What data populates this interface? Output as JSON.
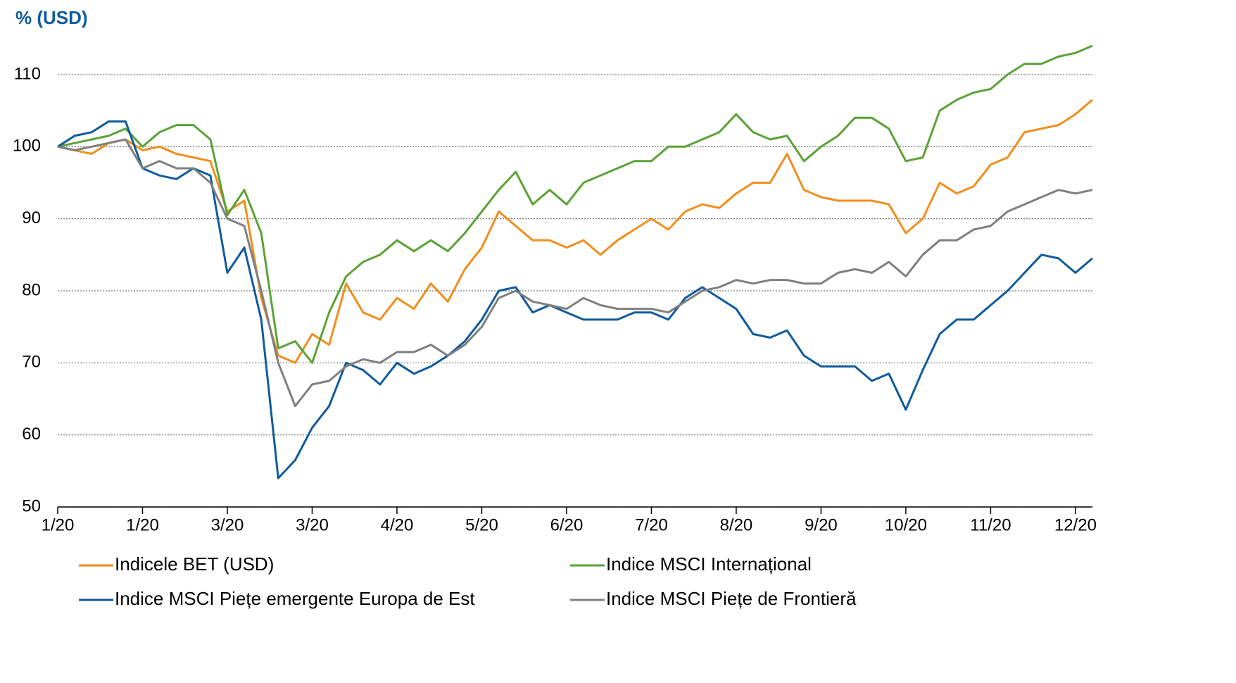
{
  "chart_data": {
    "type": "line",
    "axis_label": "% (USD)",
    "x": [
      0,
      4,
      8,
      12,
      16,
      20,
      24,
      28,
      32,
      36,
      40,
      44,
      48,
      52,
      56,
      60,
      64,
      68,
      72,
      76,
      80,
      84,
      88,
      92,
      96,
      100,
      104,
      108,
      112,
      116,
      120,
      124,
      128,
      132,
      136,
      140,
      144,
      148,
      152,
      156,
      160,
      164,
      168,
      172,
      176,
      180,
      184,
      188,
      192,
      196,
      200,
      204,
      208,
      212,
      216,
      220,
      224,
      228,
      232,
      236,
      240,
      244
    ],
    "xlim": [
      0,
      244
    ],
    "xticks": [
      {
        "value": 0,
        "label": "1/20"
      },
      {
        "value": 20,
        "label": "1/20"
      },
      {
        "value": 40,
        "label": "3/20"
      },
      {
        "value": 60,
        "label": "3/20"
      },
      {
        "value": 80,
        "label": "4/20"
      },
      {
        "value": 100,
        "label": "5/20"
      },
      {
        "value": 120,
        "label": "6/20"
      },
      {
        "value": 140,
        "label": "7/20"
      },
      {
        "value": 160,
        "label": "8/20"
      },
      {
        "value": 180,
        "label": "9/20"
      },
      {
        "value": 200,
        "label": "10/20"
      },
      {
        "value": 220,
        "label": "11/20"
      },
      {
        "value": 240,
        "label": "12/20"
      }
    ],
    "ylim": [
      50,
      114
    ],
    "yticks": [
      50,
      60,
      70,
      80,
      90,
      100,
      110
    ],
    "grid": true,
    "series": [
      {
        "name": "Indicele BET (USD)",
        "color": "#f28e1c",
        "values": [
          100,
          99.5,
          99,
          100.5,
          101,
          99.5,
          100,
          99,
          98.5,
          98,
          91,
          92.5,
          79,
          71,
          70,
          74,
          72.5,
          81,
          77,
          76,
          79,
          77.5,
          81,
          78.5,
          83,
          86,
          91,
          89,
          87,
          87,
          86,
          87,
          85,
          87,
          88.5,
          90,
          88.5,
          91,
          92,
          91.5,
          93.5,
          95,
          95,
          99,
          94,
          93,
          92.5,
          92.5,
          92.5,
          92,
          88,
          90,
          95,
          93.5,
          94.5,
          97.5,
          98.5,
          102,
          102.5,
          103,
          104.5,
          106.5
        ]
      },
      {
        "name": "Indice MSCI Internațional",
        "color": "#5aa336",
        "values": [
          100,
          100.5,
          101,
          101.5,
          102.5,
          100,
          102,
          103,
          103,
          101,
          90.5,
          94,
          88,
          72,
          73,
          70,
          77,
          82,
          84,
          85,
          87,
          85.5,
          87,
          85.5,
          88,
          91,
          94,
          96.5,
          92,
          94,
          92,
          95,
          96,
          97,
          98,
          98,
          100,
          100,
          101,
          102,
          104.5,
          102,
          101,
          101.5,
          98,
          100,
          101.5,
          104,
          104,
          102.5,
          98,
          98.5,
          105,
          106.5,
          107.5,
          108,
          110,
          111.5,
          111.5,
          112.5,
          113,
          114
        ]
      },
      {
        "name": "Indice MSCI Piețe emergente Europa de Est",
        "color": "#0f5b9e",
        "values": [
          100,
          101.5,
          102,
          103.5,
          103.5,
          97,
          96,
          95.5,
          97,
          96,
          82.5,
          86,
          76,
          54,
          56.5,
          61,
          64,
          70,
          69,
          67,
          70,
          68.5,
          69.5,
          71,
          73,
          76,
          80,
          80.5,
          77,
          78,
          77,
          76,
          76,
          76,
          77,
          77,
          76,
          79,
          80.5,
          79,
          77.5,
          74,
          73.5,
          74.5,
          71,
          69.5,
          69.5,
          69.5,
          67.5,
          68.5,
          63.5,
          69,
          74,
          76,
          76,
          78,
          80,
          82.5,
          85,
          84.5,
          82.5,
          84.5
        ]
      },
      {
        "name": "Indice MSCI Piețe de Frontieră",
        "color": "#7f7f7f",
        "values": [
          100,
          99.5,
          100,
          100.5,
          101,
          97,
          98,
          97,
          97,
          95,
          90,
          89,
          80,
          70,
          64,
          67,
          67.5,
          69.5,
          70.5,
          70,
          71.5,
          71.5,
          72.5,
          71,
          72.5,
          75,
          79,
          80,
          78.5,
          78,
          77.5,
          79,
          78,
          77.5,
          77.5,
          77.5,
          77,
          78.5,
          80,
          80.5,
          81.5,
          81,
          81.5,
          81.5,
          81,
          81,
          82.5,
          83,
          82.5,
          84,
          82,
          85,
          87,
          87,
          88.5,
          89,
          91,
          92,
          93,
          94,
          93.5,
          94
        ]
      }
    ]
  }
}
